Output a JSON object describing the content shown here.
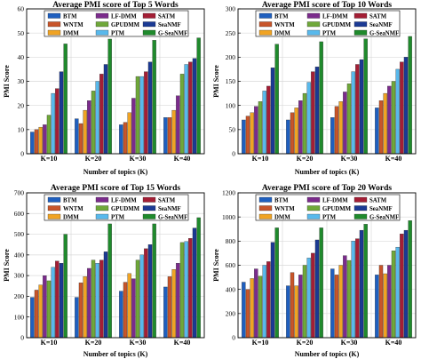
{
  "legend_order": [
    [
      "BTM",
      "LF-DMM",
      "SATM"
    ],
    [
      "WNTM",
      "GPUDMM",
      "SeaNMF"
    ],
    [
      "DMM",
      "PTM",
      "G-SeaNMF"
    ]
  ],
  "chart_data": [
    {
      "type": "bar",
      "title": "Average PMI score of Top 5 Words",
      "xlabel": "Number of topics (K)",
      "ylabel": "PMI Score",
      "ylim": [
        0,
        60
      ],
      "yticks": [
        0,
        10,
        20,
        30,
        40,
        50,
        60
      ],
      "grid": true,
      "legend": "top-inside",
      "categories": [
        "K=10",
        "K=20",
        "K=30",
        "K=40"
      ],
      "series": [
        {
          "name": "BTM",
          "color": "#1f5fbf",
          "values": [
            9,
            14.5,
            12,
            15
          ]
        },
        {
          "name": "WNTM",
          "color": "#c8552a",
          "values": [
            10,
            12.5,
            13,
            15
          ]
        },
        {
          "name": "DMM",
          "color": "#f0a323",
          "values": [
            11,
            18,
            17,
            18
          ]
        },
        {
          "name": "LF-DMM",
          "color": "#7b2b8c",
          "values": [
            12,
            22,
            23,
            24
          ]
        },
        {
          "name": "GPUDMM",
          "color": "#6fa83a",
          "values": [
            16,
            26,
            32,
            33
          ]
        },
        {
          "name": "PTM",
          "color": "#58b9ec",
          "values": [
            25,
            30,
            32,
            37
          ]
        },
        {
          "name": "SATM",
          "color": "#a41e35",
          "values": [
            27,
            33,
            34,
            38
          ]
        },
        {
          "name": "SeaNMF",
          "color": "#1b3a94",
          "values": [
            34,
            37,
            38,
            39.5
          ]
        },
        {
          "name": "G-SeaNMF",
          "color": "#1f8a2c",
          "values": [
            45.5,
            47.5,
            47,
            48
          ]
        }
      ]
    },
    {
      "type": "bar",
      "title": "Average PMI score of Top 10 Words",
      "xlabel": "Number of topics (K)",
      "ylabel": "PMI Score",
      "ylim": [
        0,
        300
      ],
      "yticks": [
        0,
        50,
        100,
        150,
        200,
        250,
        300
      ],
      "grid": true,
      "legend": "top-inside",
      "categories": [
        "K=10",
        "K=20",
        "K=30",
        "K=40"
      ],
      "series": [
        {
          "name": "BTM",
          "color": "#1f5fbf",
          "values": [
            70,
            70,
            75,
            95
          ]
        },
        {
          "name": "WNTM",
          "color": "#c8552a",
          "values": [
            78,
            85,
            98,
            110
          ]
        },
        {
          "name": "DMM",
          "color": "#f0a323",
          "values": [
            85,
            95,
            108,
            125
          ]
        },
        {
          "name": "LF-DMM",
          "color": "#7b2b8c",
          "values": [
            98,
            110,
            128,
            140
          ]
        },
        {
          "name": "GPUDMM",
          "color": "#6fa83a",
          "values": [
            108,
            125,
            145,
            150
          ]
        },
        {
          "name": "PTM",
          "color": "#58b9ec",
          "values": [
            130,
            148,
            170,
            175
          ]
        },
        {
          "name": "SATM",
          "color": "#a41e35",
          "values": [
            140,
            170,
            185,
            190
          ]
        },
        {
          "name": "SeaNMF",
          "color": "#1b3a94",
          "values": [
            178,
            180,
            195,
            200
          ]
        },
        {
          "name": "G-SeaNMF",
          "color": "#1f8a2c",
          "values": [
            227,
            232,
            238,
            243
          ]
        }
      ]
    },
    {
      "type": "bar",
      "title": "Average PMI score of Top 15 Words",
      "xlabel": "Number of topics (K)",
      "ylabel": "PMI Score",
      "ylim": [
        0,
        700
      ],
      "yticks": [
        0,
        100,
        200,
        300,
        400,
        500,
        600,
        700
      ],
      "grid": true,
      "legend": "top-inside",
      "categories": [
        "K=10",
        "K=20",
        "K=30",
        "K=40"
      ],
      "series": [
        {
          "name": "BTM",
          "color": "#1f5fbf",
          "values": [
            195,
            195,
            225,
            245
          ]
        },
        {
          "name": "WNTM",
          "color": "#c8552a",
          "values": [
            230,
            265,
            268,
            295
          ]
        },
        {
          "name": "DMM",
          "color": "#f0a323",
          "values": [
            255,
            295,
            310,
            330
          ]
        },
        {
          "name": "LF-DMM",
          "color": "#7b2b8c",
          "values": [
            300,
            335,
            285,
            360
          ]
        },
        {
          "name": "GPUDMM",
          "color": "#6fa83a",
          "values": [
            275,
            375,
            375,
            460
          ]
        },
        {
          "name": "PTM",
          "color": "#58b9ec",
          "values": [
            340,
            360,
            400,
            465
          ]
        },
        {
          "name": "SATM",
          "color": "#a41e35",
          "values": [
            370,
            375,
            430,
            480
          ]
        },
        {
          "name": "SeaNMF",
          "color": "#1b3a94",
          "values": [
            360,
            415,
            450,
            530
          ]
        },
        {
          "name": "G-SeaNMF",
          "color": "#1f8a2c",
          "values": [
            500,
            550,
            550,
            580
          ]
        }
      ]
    },
    {
      "type": "bar",
      "title": "Average PMI score of Top 20 Words",
      "xlabel": "Number of topics (K)",
      "ylabel": "PMI Score",
      "ylim": [
        0,
        1200
      ],
      "yticks": [
        0,
        200,
        400,
        600,
        800,
        1000,
        1200
      ],
      "grid": true,
      "legend": "top-inside",
      "categories": [
        "K=10",
        "K=20",
        "K=30",
        "K=40"
      ],
      "series": [
        {
          "name": "BTM",
          "color": "#1f5fbf",
          "values": [
            460,
            430,
            570,
            520
          ]
        },
        {
          "name": "WNTM",
          "color": "#c8552a",
          "values": [
            400,
            540,
            520,
            600
          ]
        },
        {
          "name": "DMM",
          "color": "#f0a323",
          "values": [
            490,
            430,
            600,
            530
          ]
        },
        {
          "name": "LF-DMM",
          "color": "#7b2b8c",
          "values": [
            570,
            520,
            680,
            600
          ]
        },
        {
          "name": "GPUDMM",
          "color": "#6fa83a",
          "values": [
            510,
            600,
            640,
            720
          ]
        },
        {
          "name": "PTM",
          "color": "#58b9ec",
          "values": [
            600,
            660,
            800,
            750
          ]
        },
        {
          "name": "SATM",
          "color": "#a41e35",
          "values": [
            630,
            700,
            820,
            860
          ]
        },
        {
          "name": "SeaNMF",
          "color": "#1b3a94",
          "values": [
            790,
            810,
            890,
            890
          ]
        },
        {
          "name": "G-SeaNMF",
          "color": "#1f8a2c",
          "values": [
            910,
            910,
            940,
            970
          ]
        }
      ]
    }
  ]
}
